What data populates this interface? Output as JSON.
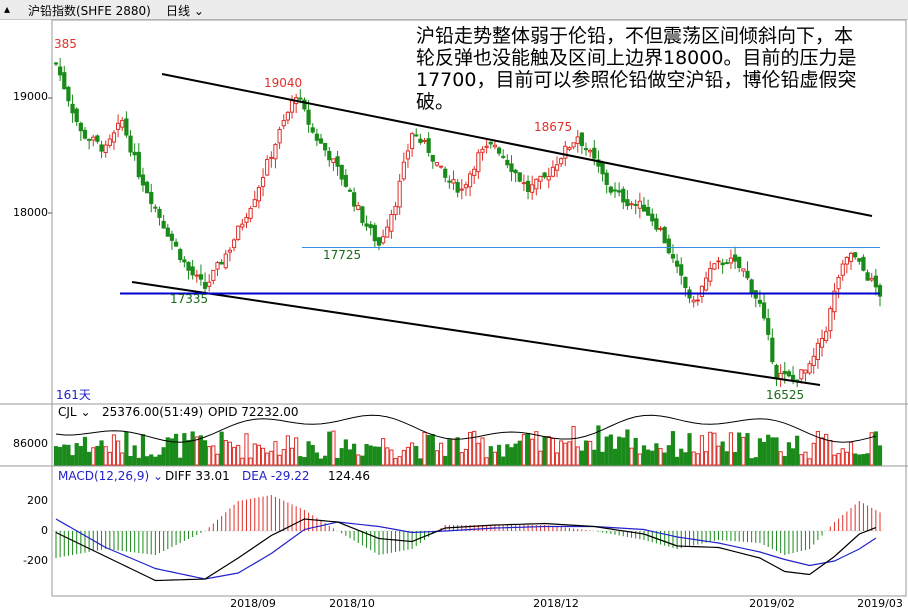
{
  "header": {
    "title": "沪铅指数(SHFE 2880)",
    "period": "日线",
    "period_icon": "chevron-down-icon"
  },
  "annotation": "沪铅走势整体弱于伦铅，不但震荡区间倾斜向下，本轮反弹也没能触及区间上边界18000。目前的压力是17700，目前可以参照伦铅做空沪铅，博伦铅虚假突破。",
  "price_panel": {
    "y_ticks": [
      "19000",
      "18000"
    ],
    "marks": {
      "top_left": "385",
      "h1": "19040",
      "h2": "18675",
      "l1": "17725",
      "l2": "17335",
      "l3": "16525"
    },
    "days_label": "161天"
  },
  "volume_panel": {
    "label": "CJL",
    "value": "25376.00(51:49)",
    "opid": "OPID 72232.00",
    "y_tick": "86000"
  },
  "macd_panel": {
    "label": "MACD(12,26,9)",
    "diff": "DIFF 33.01",
    "dea": "DEA -29.22",
    "macd": "124.46",
    "y_ticks": [
      "200",
      "0",
      "-200"
    ]
  },
  "x_axis": {
    "dates": [
      "2018/09",
      "2018/10",
      "2018/12",
      "2019/02",
      "2019/03"
    ]
  },
  "colors": {
    "up": "#e0302a",
    "down": "#1a8a1a",
    "trend": "#000000",
    "support": "#0000cc",
    "resistance": "#3a8ee6",
    "dea": "#2222cc",
    "diff": "#000000"
  },
  "chart_data": {
    "type": "candlestick",
    "title": "沪铅指数(SHFE 2880) 日线",
    "ylim": [
      16400,
      19450
    ],
    "levels": {
      "resistance": 17700,
      "support": 17300
    },
    "highs_lows": [
      {
        "label": "19040",
        "value": 19040
      },
      {
        "label": "18675",
        "value": 18675
      },
      {
        "label": "17725",
        "value": 17725
      },
      {
        "label": "17335",
        "value": 17335
      },
      {
        "label": "16525",
        "value": 16525
      }
    ],
    "close_path": [
      [
        0,
        19300
      ],
      [
        6,
        18700
      ],
      [
        12,
        18550
      ],
      [
        16,
        18800
      ],
      [
        20,
        18350
      ],
      [
        26,
        17900
      ],
      [
        32,
        17500
      ],
      [
        36,
        17350
      ],
      [
        42,
        17700
      ],
      [
        48,
        18150
      ],
      [
        54,
        18700
      ],
      [
        58,
        19040
      ],
      [
        62,
        18700
      ],
      [
        66,
        18500
      ],
      [
        70,
        18250
      ],
      [
        74,
        17950
      ],
      [
        78,
        17725
      ],
      [
        82,
        18100
      ],
      [
        86,
        18700
      ],
      [
        90,
        18550
      ],
      [
        94,
        18300
      ],
      [
        98,
        18200
      ],
      [
        102,
        18500
      ],
      [
        106,
        18600
      ],
      [
        110,
        18400
      ],
      [
        114,
        18200
      ],
      [
        118,
        18300
      ],
      [
        122,
        18500
      ],
      [
        126,
        18675
      ],
      [
        130,
        18450
      ],
      [
        134,
        18200
      ],
      [
        138,
        18100
      ],
      [
        142,
        18050
      ],
      [
        146,
        17850
      ],
      [
        150,
        17500
      ],
      [
        154,
        17200
      ],
      [
        158,
        17500
      ],
      [
        162,
        17600
      ],
      [
        166,
        17500
      ],
      [
        170,
        17200
      ],
      [
        174,
        16600
      ],
      [
        178,
        16550
      ],
      [
        182,
        16650
      ],
      [
        186,
        17000
      ],
      [
        189,
        17450
      ],
      [
        192,
        17650
      ],
      [
        196,
        17450
      ],
      [
        199,
        17300
      ]
    ],
    "macd_diff_path": [
      [
        0,
        -10
      ],
      [
        12,
        -170
      ],
      [
        24,
        -330
      ],
      [
        36,
        -320
      ],
      [
        44,
        -180
      ],
      [
        52,
        -30
      ],
      [
        60,
        80
      ],
      [
        68,
        60
      ],
      [
        78,
        -50
      ],
      [
        86,
        -70
      ],
      [
        94,
        20
      ],
      [
        106,
        40
      ],
      [
        118,
        50
      ],
      [
        130,
        30
      ],
      [
        142,
        -20
      ],
      [
        150,
        -100
      ],
      [
        160,
        -110
      ],
      [
        170,
        -180
      ],
      [
        176,
        -270
      ],
      [
        182,
        -290
      ],
      [
        188,
        -170
      ],
      [
        194,
        -20
      ],
      [
        199,
        33
      ]
    ],
    "macd_dea_path": [
      [
        0,
        80
      ],
      [
        12,
        -110
      ],
      [
        24,
        -250
      ],
      [
        36,
        -320
      ],
      [
        44,
        -280
      ],
      [
        52,
        -150
      ],
      [
        60,
        10
      ],
      [
        68,
        60
      ],
      [
        78,
        30
      ],
      [
        86,
        -10
      ],
      [
        94,
        0
      ],
      [
        106,
        20
      ],
      [
        118,
        30
      ],
      [
        130,
        30
      ],
      [
        142,
        10
      ],
      [
        150,
        -40
      ],
      [
        160,
        -80
      ],
      [
        170,
        -140
      ],
      [
        176,
        -190
      ],
      [
        182,
        -230
      ],
      [
        188,
        -200
      ],
      [
        194,
        -120
      ],
      [
        199,
        -29
      ]
    ]
  }
}
